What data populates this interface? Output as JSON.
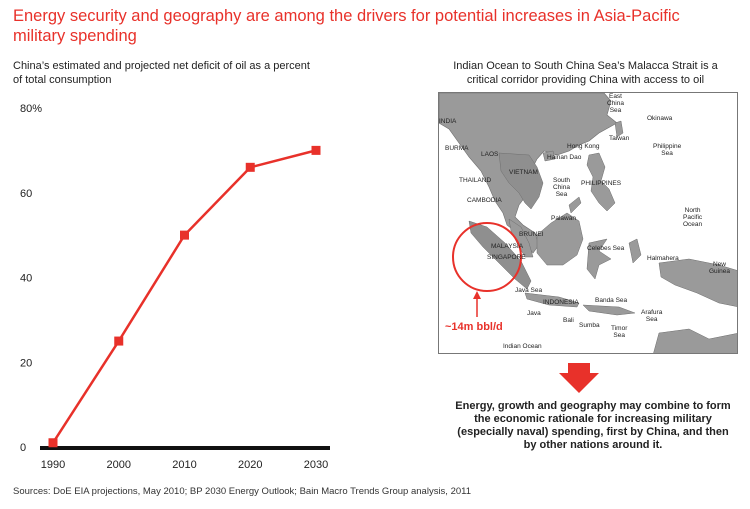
{
  "header": {
    "title": "Energy security and geography are among the drivers for potential increases in Asia-Pacific military spending"
  },
  "chart_data": {
    "type": "line",
    "title": "China’s estimated and projected net deficit of oil as a percent of total consumption",
    "x": [
      1990,
      2000,
      2010,
      2020,
      2030
    ],
    "categories": [
      "1990",
      "2000",
      "2010",
      "2020",
      "2030"
    ],
    "series": [
      {
        "values": [
          1,
          25,
          50,
          66,
          70
        ]
      }
    ],
    "yticks": [
      "0",
      "20",
      "40",
      "60",
      "80%"
    ],
    "ylim": [
      0,
      80
    ],
    "grid": false,
    "legend": "none",
    "colors": {
      "line": "#e8312a",
      "axis": "#111111"
    }
  },
  "map": {
    "title": "Indian Ocean to South China Sea’s Malacca Strait is a critical corridor providing China with access to oil",
    "callout": "~14m bbl/d",
    "labels": {
      "india": "INDIA",
      "burma": "BURMA",
      "laos": "LAOS",
      "vietnam": "VIETNAM",
      "thailand": "THAILAND",
      "cambodia": "CAMBODIA",
      "east_china_sea": "East\nChina\nSea",
      "okinawa": "Okinawa",
      "taiwan": "Taiwan",
      "hong_kong": "Hong Kong",
      "hainan_dao": "Hainan Dao",
      "philippine_sea": "Philippine\nSea",
      "south_china_sea": "South\nChina\nSea",
      "philippines": "PHILIPPINES",
      "north_pacific_ocean": "North\nPacific\nOcean",
      "palawan": "Palawan",
      "brunei": "BRUNEI",
      "malaysia": "MALAYSIA",
      "singapore": "SINGAPORE",
      "celebes_sea": "Celebes Sea",
      "halmahera": "Halmahera",
      "new_guinea": "New\nGuinea",
      "java_sea": "Java Sea",
      "indonesia": "INDONESIA",
      "banda_sea": "Banda Sea",
      "arafura_sea": "Arafura\nSea",
      "java": "Java",
      "bali": "Bali",
      "sumba": "Sumba",
      "timor_sea": "Timor\nSea",
      "indian_ocean": "Indian Ocean"
    }
  },
  "note": "Energy, growth and geography may combine to form the economic rationale for increasing military (especially naval) spending, first by China, and then by other nations around it.",
  "source": "Sources: DoE EIA projections, May 2010; BP 2030 Energy Outlook; Bain Macro Trends Group analysis, 2011"
}
